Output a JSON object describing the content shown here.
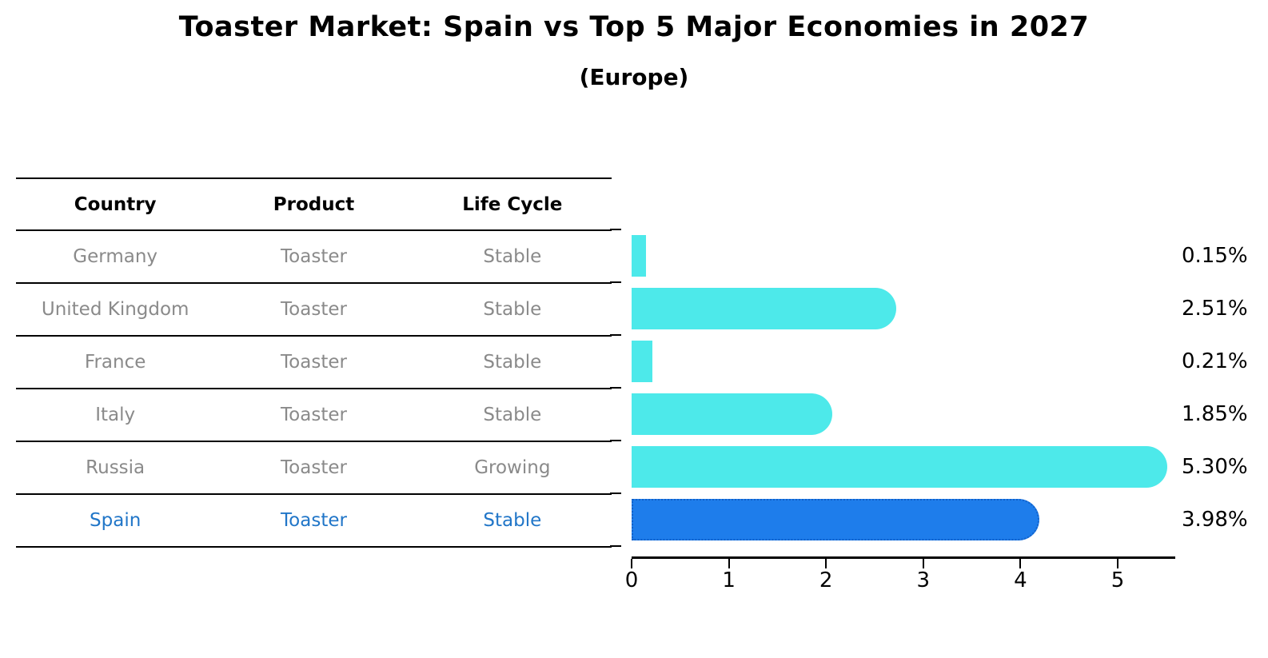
{
  "title": "Toaster Market: Spain vs Top 5 Major Economies in 2027",
  "subtitle": "(Europe)",
  "table": {
    "headers": [
      "Country",
      "Product",
      "Life Cycle"
    ],
    "rows": [
      {
        "country": "Germany",
        "product": "Toaster",
        "life_cycle": "Stable",
        "highlight": false
      },
      {
        "country": "United Kingdom",
        "product": "Toaster",
        "life_cycle": "Stable",
        "highlight": false
      },
      {
        "country": "France",
        "product": "Toaster",
        "life_cycle": "Stable",
        "highlight": false
      },
      {
        "country": "Italy",
        "product": "Toaster",
        "life_cycle": "Stable",
        "highlight": false
      },
      {
        "country": "Russia",
        "product": "Toaster",
        "life_cycle": "Growing",
        "highlight": false
      },
      {
        "country": "Spain",
        "product": "Toaster",
        "life_cycle": "Stable",
        "highlight": true
      }
    ]
  },
  "chart_data": {
    "type": "bar",
    "orientation": "horizontal",
    "title": "Toaster Market: Spain vs Top 5 Major Economies in 2027 (Europe)",
    "categories": [
      "Germany",
      "United Kingdom",
      "France",
      "Italy",
      "Russia",
      "Spain"
    ],
    "values": [
      0.15,
      2.51,
      0.21,
      1.85,
      5.3,
      3.98
    ],
    "value_labels": [
      "0.15%",
      "2.51%",
      "0.21%",
      "1.85%",
      "5.30%",
      "3.98%"
    ],
    "xticks": [
      0,
      1,
      2,
      3,
      4,
      5
    ],
    "xlim": [
      0,
      5.6
    ],
    "grid": false,
    "legend": false,
    "highlight_index": 5,
    "bar_color": "#4de9ea",
    "highlight_bar_color": "#1e7deb",
    "highlight_border_color": "#1261c9",
    "row_text_color": "#8a8a8a",
    "highlight_text_color": "#2176c8"
  }
}
